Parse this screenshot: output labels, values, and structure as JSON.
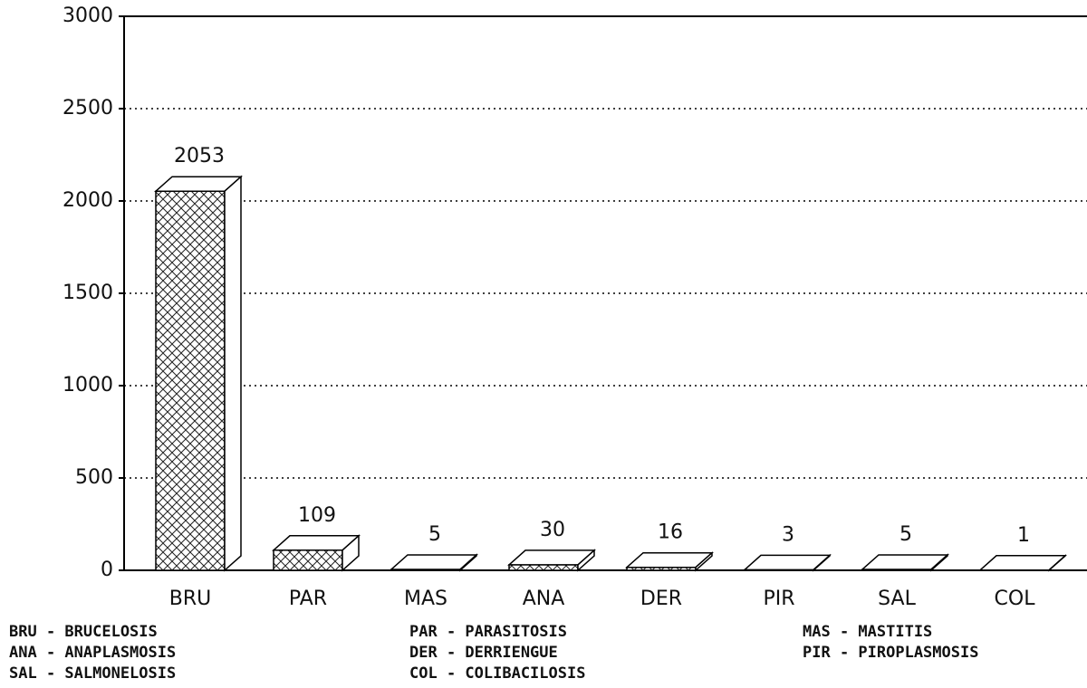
{
  "chart_data": {
    "type": "bar",
    "categories": [
      "BRU",
      "PAR",
      "MAS",
      "ANA",
      "DER",
      "PIR",
      "SAL",
      "COL"
    ],
    "values": [
      2053,
      109,
      5,
      30,
      16,
      3,
      5,
      1
    ],
    "ylim": [
      0,
      3000
    ],
    "yticks": [
      0,
      500,
      1000,
      1500,
      2000,
      2500,
      3000
    ],
    "grid": true,
    "color": "#000000",
    "notes": [
      "BRU - BRUCELOSIS",
      "PAR - PARASITOSIS",
      "MAS - MASTITIS",
      "ANA - ANAPLASMOSIS",
      "DER - DERRIENGUE",
      "PIR - PIROPLASMOSIS",
      "SAL - SALMONELOSIS",
      "COL - COLIBACILOSIS"
    ]
  }
}
